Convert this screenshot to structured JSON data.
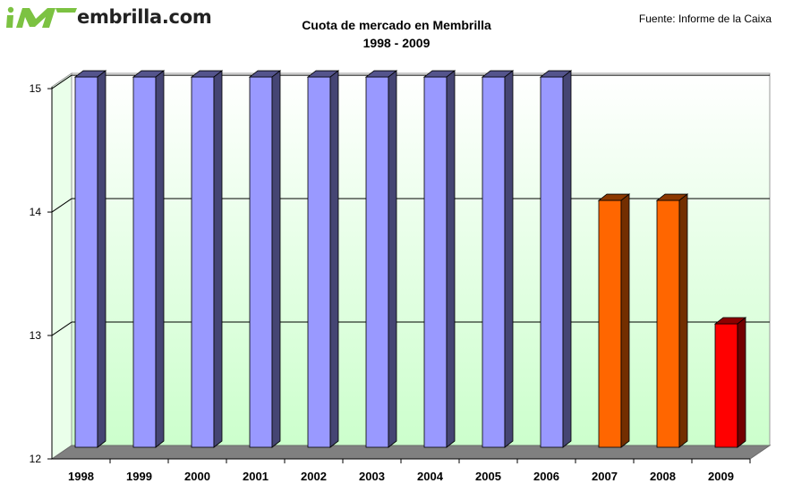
{
  "brand": {
    "logo_text": "embrilla.com",
    "logo_colors": {
      "green": "#7cc242",
      "dark": "#222222"
    }
  },
  "chart_data": {
    "type": "bar",
    "title": "Cuota de mercado en Membrilla",
    "subtitle": "1998 - 2009",
    "source": "Fuente: Informe de la Caixa",
    "xlabel": "",
    "ylabel": "",
    "ylim": [
      12,
      15
    ],
    "yticks": [
      12,
      13,
      14,
      15
    ],
    "grid": true,
    "categories": [
      "1998",
      "1999",
      "2000",
      "2001",
      "2002",
      "2003",
      "2004",
      "2005",
      "2006",
      "2007",
      "2008",
      "2009"
    ],
    "values": [
      15,
      15,
      15,
      15,
      15,
      15,
      15,
      15,
      15,
      14,
      14,
      13
    ],
    "bar_colors": [
      "#9999ff",
      "#9999ff",
      "#9999ff",
      "#9999ff",
      "#9999ff",
      "#9999ff",
      "#9999ff",
      "#9999ff",
      "#9999ff",
      "#ff6600",
      "#ff6600",
      "#ff0000"
    ],
    "background_gradient": [
      "#ffffff",
      "#ccffcc"
    ]
  }
}
